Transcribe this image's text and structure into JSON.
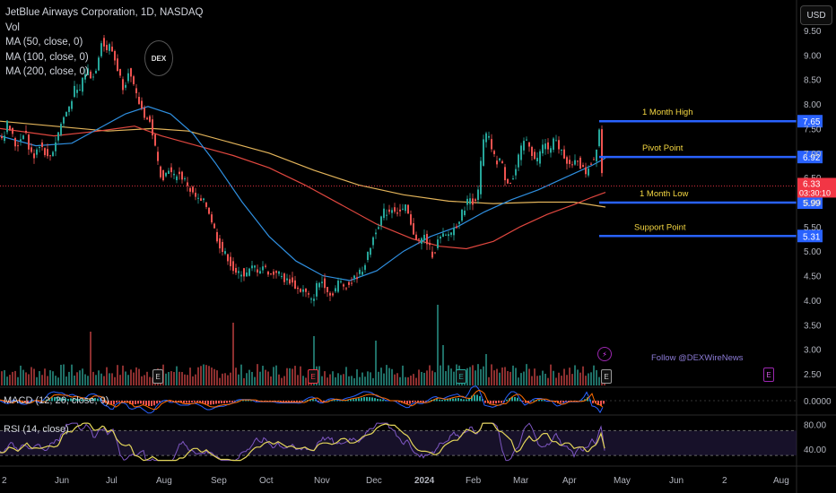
{
  "legend": {
    "title": "JetBlue Airways Corporation, 1D, NASDAQ",
    "vol": "Vol",
    "ma50": "MA (50, close, 0)",
    "ma100": "MA (100, close, 0)",
    "ma200": "MA (200, close, 0)"
  },
  "currency_button": "USD",
  "watermark": "DEX",
  "follow_text": "Follow @DEXWireNews",
  "panes": {
    "macd_label": "MACD (12, 26, close, 9)",
    "rsi_label": "RSI (14, close)"
  },
  "colors": {
    "up": "#26a69a",
    "down": "#ef5350",
    "ma50": "#2f8fe0",
    "ma100": "#e0473f",
    "ma200": "#e3b45a",
    "level": "#2962ff",
    "level_text": "#f5d742",
    "rsi": "#e3d55a",
    "rsi_ma": "#7e57c2"
  },
  "icons": {
    "earnings": "earnings-e-icon",
    "bolt": "lightning-bolt-icon"
  },
  "chart_data": {
    "type": "candlestick",
    "title": "JetBlue Airways Corporation, 1D, NASDAQ",
    "price_axis": {
      "ticks": [
        "9.50",
        "9.00",
        "8.50",
        "8.00",
        "7.50",
        "7.00",
        "6.50",
        "6.00",
        "5.50",
        "5.00",
        "4.50",
        "4.00",
        "3.50",
        "3.00",
        "2.50"
      ],
      "range": [
        2.3,
        9.6
      ]
    },
    "time_axis": {
      "ticks": [
        "2",
        "Jun",
        "Jul",
        "Aug",
        "Sep",
        "Oct",
        "Nov",
        "Dec",
        "2024",
        "Feb",
        "Mar",
        "Apr",
        "May",
        "Jun",
        "2",
        "Aug"
      ]
    },
    "current_price": {
      "value": "6.33",
      "countdown": "03:30:10"
    },
    "levels": [
      {
        "name": "1 Month High",
        "value": 7.65,
        "tag": "7.65"
      },
      {
        "name": "Pivot Point",
        "value": 6.92,
        "tag": "6.92"
      },
      {
        "name": "1 Month Low",
        "value": 5.99,
        "tag": "5.99"
      },
      {
        "name": "Support Point",
        "value": 5.31,
        "tag": "5.31"
      }
    ],
    "price_path": [
      [
        0,
        7.4
      ],
      [
        5,
        7.3
      ],
      [
        10,
        7.6
      ],
      [
        15,
        7.4
      ],
      [
        20,
        7.1
      ],
      [
        25,
        7.3
      ],
      [
        30,
        7.5
      ],
      [
        35,
        7.0
      ],
      [
        40,
        6.95
      ],
      [
        45,
        7.2
      ],
      [
        50,
        7.1
      ],
      [
        55,
        6.9
      ],
      [
        60,
        7.0
      ],
      [
        65,
        7.3
      ],
      [
        70,
        7.6
      ],
      [
        75,
        7.8
      ],
      [
        80,
        8.0
      ],
      [
        85,
        8.3
      ],
      [
        90,
        8.2
      ],
      [
        95,
        8.6
      ],
      [
        100,
        8.7
      ],
      [
        105,
        8.5
      ],
      [
        110,
        8.8
      ],
      [
        115,
        9.3
      ],
      [
        120,
        9.1
      ],
      [
        125,
        9.2
      ],
      [
        130,
        8.9
      ],
      [
        135,
        8.6
      ],
      [
        140,
        8.3
      ],
      [
        145,
        8.7
      ],
      [
        150,
        8.4
      ],
      [
        155,
        8.1
      ],
      [
        160,
        7.9
      ],
      [
        165,
        7.7
      ],
      [
        170,
        7.6
      ],
      [
        175,
        7.1
      ],
      [
        180,
        6.6
      ],
      [
        185,
        6.5
      ],
      [
        190,
        6.7
      ],
      [
        195,
        6.5
      ],
      [
        200,
        6.6
      ],
      [
        205,
        6.5
      ],
      [
        210,
        6.4
      ],
      [
        215,
        6.2
      ],
      [
        220,
        6.1
      ],
      [
        225,
        6.0
      ],
      [
        230,
        6.0
      ],
      [
        235,
        5.8
      ],
      [
        240,
        5.5
      ],
      [
        245,
        5.2
      ],
      [
        250,
        5.0
      ],
      [
        255,
        4.9
      ],
      [
        260,
        4.7
      ],
      [
        265,
        4.5
      ],
      [
        270,
        4.6
      ],
      [
        275,
        4.5
      ],
      [
        280,
        4.6
      ],
      [
        285,
        4.7
      ],
      [
        290,
        4.6
      ],
      [
        295,
        4.7
      ],
      [
        300,
        4.6
      ],
      [
        305,
        4.5
      ],
      [
        310,
        4.6
      ],
      [
        315,
        4.5
      ],
      [
        320,
        4.4
      ],
      [
        325,
        4.4
      ],
      [
        330,
        4.3
      ],
      [
        335,
        4.2
      ],
      [
        340,
        4.2
      ],
      [
        345,
        4.1
      ],
      [
        350,
        3.95
      ],
      [
        355,
        4.3
      ],
      [
        360,
        4.4
      ],
      [
        365,
        4.3
      ],
      [
        370,
        4.1
      ],
      [
        375,
        4.2
      ],
      [
        380,
        4.4
      ],
      [
        385,
        4.3
      ],
      [
        390,
        4.3
      ],
      [
        395,
        4.4
      ],
      [
        400,
        4.5
      ],
      [
        405,
        4.6
      ],
      [
        410,
        4.8
      ],
      [
        415,
        5.1
      ],
      [
        420,
        5.4
      ],
      [
        425,
        5.6
      ],
      [
        430,
        5.8
      ],
      [
        435,
        5.8
      ],
      [
        440,
        5.9
      ],
      [
        445,
        5.8
      ],
      [
        450,
        5.8
      ],
      [
        455,
        5.9
      ],
      [
        460,
        5.5
      ],
      [
        465,
        5.3
      ],
      [
        470,
        5.2
      ],
      [
        475,
        5.3
      ],
      [
        480,
        5.1
      ],
      [
        485,
        4.9
      ],
      [
        490,
        5.2
      ],
      [
        495,
        5.3
      ],
      [
        500,
        5.3
      ],
      [
        505,
        5.4
      ],
      [
        510,
        5.5
      ],
      [
        515,
        5.7
      ],
      [
        520,
        5.9
      ],
      [
        525,
        6.1
      ],
      [
        530,
        6.0
      ],
      [
        535,
        6.2
      ],
      [
        540,
        7.2
      ],
      [
        545,
        7.4
      ],
      [
        550,
        7.1
      ],
      [
        555,
        6.8
      ],
      [
        560,
        6.9
      ],
      [
        565,
        6.5
      ],
      [
        570,
        6.4
      ],
      [
        575,
        6.5
      ],
      [
        580,
        6.9
      ],
      [
        585,
        7.2
      ],
      [
        590,
        7.3
      ],
      [
        595,
        7.0
      ],
      [
        600,
        6.8
      ],
      [
        605,
        7.1
      ],
      [
        610,
        7.2
      ],
      [
        615,
        7.0
      ],
      [
        620,
        7.3
      ],
      [
        625,
        7.1
      ],
      [
        630,
        7.0
      ],
      [
        635,
        6.8
      ],
      [
        640,
        6.7
      ],
      [
        645,
        6.9
      ],
      [
        650,
        6.7
      ],
      [
        655,
        6.6
      ],
      [
        660,
        6.8
      ],
      [
        665,
        6.9
      ],
      [
        670,
        7.5
      ],
      [
        674,
        6.33
      ]
    ],
    "ma50_path": [
      [
        0,
        7.35
      ],
      [
        40,
        7.15
      ],
      [
        80,
        7.2
      ],
      [
        110,
        7.5
      ],
      [
        140,
        7.8
      ],
      [
        165,
        7.95
      ],
      [
        190,
        7.8
      ],
      [
        215,
        7.4
      ],
      [
        240,
        6.8
      ],
      [
        270,
        6.0
      ],
      [
        300,
        5.3
      ],
      [
        330,
        4.8
      ],
      [
        360,
        4.5
      ],
      [
        390,
        4.4
      ],
      [
        420,
        4.6
      ],
      [
        450,
        5.0
      ],
      [
        480,
        5.3
      ],
      [
        510,
        5.5
      ],
      [
        540,
        5.8
      ],
      [
        570,
        6.05
      ],
      [
        600,
        6.25
      ],
      [
        630,
        6.5
      ],
      [
        660,
        6.75
      ],
      [
        675,
        6.9
      ]
    ],
    "ma100_path": [
      [
        0,
        7.5
      ],
      [
        60,
        7.35
      ],
      [
        110,
        7.45
      ],
      [
        150,
        7.55
      ],
      [
        180,
        7.35
      ],
      [
        220,
        7.15
      ],
      [
        260,
        6.95
      ],
      [
        300,
        6.7
      ],
      [
        340,
        6.35
      ],
      [
        380,
        5.95
      ],
      [
        420,
        5.55
      ],
      [
        460,
        5.25
      ],
      [
        490,
        5.1
      ],
      [
        520,
        5.05
      ],
      [
        550,
        5.2
      ],
      [
        580,
        5.5
      ],
      [
        610,
        5.75
      ],
      [
        640,
        5.95
      ],
      [
        660,
        6.1
      ],
      [
        675,
        6.2
      ]
    ],
    "ma200_path": [
      [
        0,
        7.65
      ],
      [
        60,
        7.55
      ],
      [
        120,
        7.45
      ],
      [
        170,
        7.5
      ],
      [
        210,
        7.45
      ],
      [
        260,
        7.2
      ],
      [
        300,
        7.0
      ],
      [
        350,
        6.65
      ],
      [
        400,
        6.35
      ],
      [
        450,
        6.15
      ],
      [
        500,
        6.02
      ],
      [
        550,
        5.97
      ],
      [
        600,
        6.0
      ],
      [
        640,
        6.0
      ],
      [
        675,
        5.9
      ]
    ],
    "volume": {
      "panel_top": 330,
      "panel_bottom": 430
    },
    "macd": {
      "range": [
        -0.3,
        0.3
      ],
      "tick": "0.0000"
    },
    "rsi": {
      "ticks": [
        "80.00",
        "40.00"
      ],
      "upper": 70,
      "lower": 30,
      "range": [
        20,
        85
      ]
    },
    "earnings_markers": 5,
    "legend_placement": "top-left"
  }
}
